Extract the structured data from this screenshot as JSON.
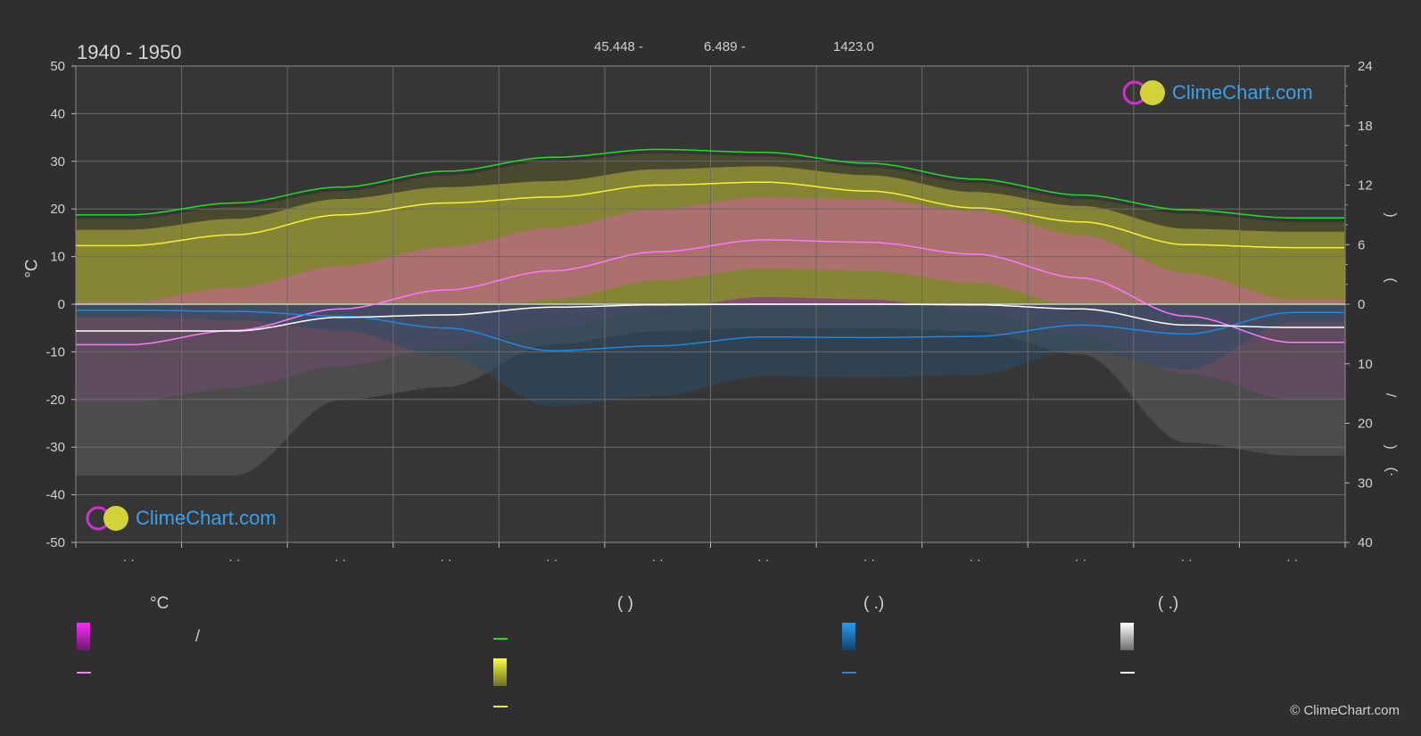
{
  "header": {
    "period": "1940 - 1950",
    "lat": "45.448 -",
    "lon": "6.489 -",
    "elevation": "1423.0"
  },
  "axes": {
    "left_unit": "°C",
    "left_ticks": [
      "50",
      "40",
      "30",
      "20",
      "10",
      "0",
      "-10",
      "-20",
      "-30",
      "-40",
      "-50"
    ],
    "right_top_ticks": [
      "24",
      "18",
      "12",
      "6",
      "0"
    ],
    "right_bottom_ticks": [
      "10",
      "20",
      "30",
      "40"
    ],
    "right_label_parens": [
      ")",
      "(",
      "/",
      ")",
      "(·"
    ],
    "month_ticks": [
      "· ·",
      "· ·",
      "· ·",
      "· ·",
      "· ·",
      "· ·",
      "· ·",
      "· ·",
      "· ·",
      "· ·",
      "· ·",
      "· ·"
    ]
  },
  "logos": {
    "brand": "ClimeChart.com"
  },
  "legend": {
    "col1_head": "°C",
    "col2_head": "(          )",
    "col3_head": "(   .)",
    "col4_head": "(   .)",
    "slash": "/",
    "colors": {
      "temp_range": "#e020e0",
      "temp_mean": "#ff77ff",
      "daylight": "#22dd22",
      "sunshine_fill": "#dede3a",
      "sunshine_line": "#f2f23a",
      "rain": "#1e88e5",
      "snow": "#e8e8e8"
    }
  },
  "copyright": "© ClimeChart.com",
  "chart_data": {
    "type": "line",
    "x_months": [
      1,
      2,
      3,
      4,
      5,
      6,
      7,
      8,
      9,
      10,
      11,
      12
    ],
    "ylim_left": [
      -50,
      50
    ],
    "ylim_right_hours": [
      0,
      24
    ],
    "ylim_right_precip_mm": [
      0,
      40
    ],
    "series": [
      {
        "key": "daylight_hours",
        "axis": "hours",
        "color": "#22dd22",
        "values": [
          9.0,
          10.2,
          11.8,
          13.4,
          14.8,
          15.6,
          15.3,
          14.2,
          12.6,
          11.0,
          9.5,
          8.7
        ]
      },
      {
        "key": "sunshine_hours",
        "axis": "hours",
        "color": "#f2f23a",
        "values": [
          5.9,
          7.0,
          9.0,
          10.2,
          10.8,
          12.0,
          12.3,
          11.4,
          9.7,
          8.3,
          6.0,
          5.7
        ]
      },
      {
        "key": "mean_temperature",
        "axis": "temp",
        "color": "#ff77ff",
        "values": [
          -8.5,
          -5.5,
          -1.0,
          3.0,
          7.0,
          11.0,
          13.5,
          13.0,
          10.5,
          5.5,
          -2.5,
          -8.0
        ]
      },
      {
        "key": "rain_mm",
        "axis": "precip",
        "color": "#1e88e5",
        "values": [
          1.0,
          1.2,
          2.0,
          4.0,
          7.8,
          7.0,
          5.5,
          5.6,
          5.4,
          3.5,
          5.0,
          1.4
        ]
      },
      {
        "key": "snow_mm",
        "axis": "precip",
        "color": "#ffffff",
        "values": [
          4.5,
          4.5,
          2.2,
          1.8,
          0.5,
          0.1,
          0.0,
          0.0,
          0.1,
          0.8,
          3.5,
          3.9
        ]
      }
    ]
  }
}
